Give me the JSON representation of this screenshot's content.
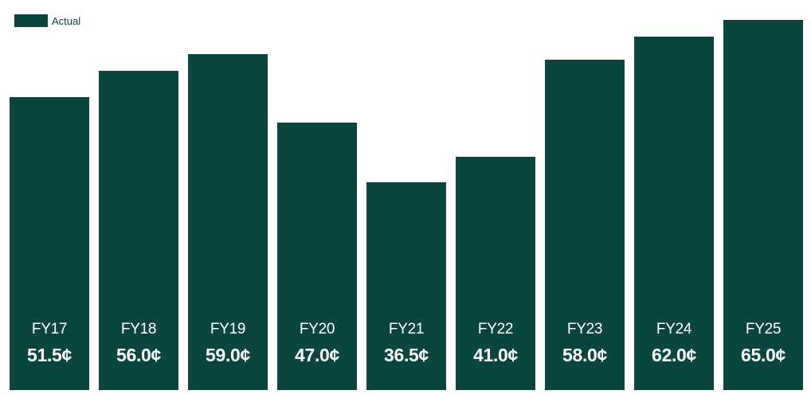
{
  "colors": {
    "bar": "#0b4540",
    "label": "#ffffff"
  },
  "chart_data": {
    "type": "bar",
    "legend": "Actual",
    "legend_position": "top-left",
    "categories": [
      "FY17",
      "FY18",
      "FY19",
      "FY20",
      "FY21",
      "FY22",
      "FY23",
      "FY24",
      "FY25"
    ],
    "series": [
      {
        "name": "Actual",
        "values": [
          51.5,
          56.0,
          59.0,
          47.0,
          36.5,
          41.0,
          58.0,
          62.0,
          65.0
        ],
        "value_labels": [
          "51.5¢",
          "56.0¢",
          "59.0¢",
          "47.0¢",
          "36.5¢",
          "41.0¢",
          "58.0¢",
          "62.0¢",
          "65.0¢"
        ]
      }
    ],
    "ylim": [
      0,
      65
    ],
    "grid": false
  }
}
